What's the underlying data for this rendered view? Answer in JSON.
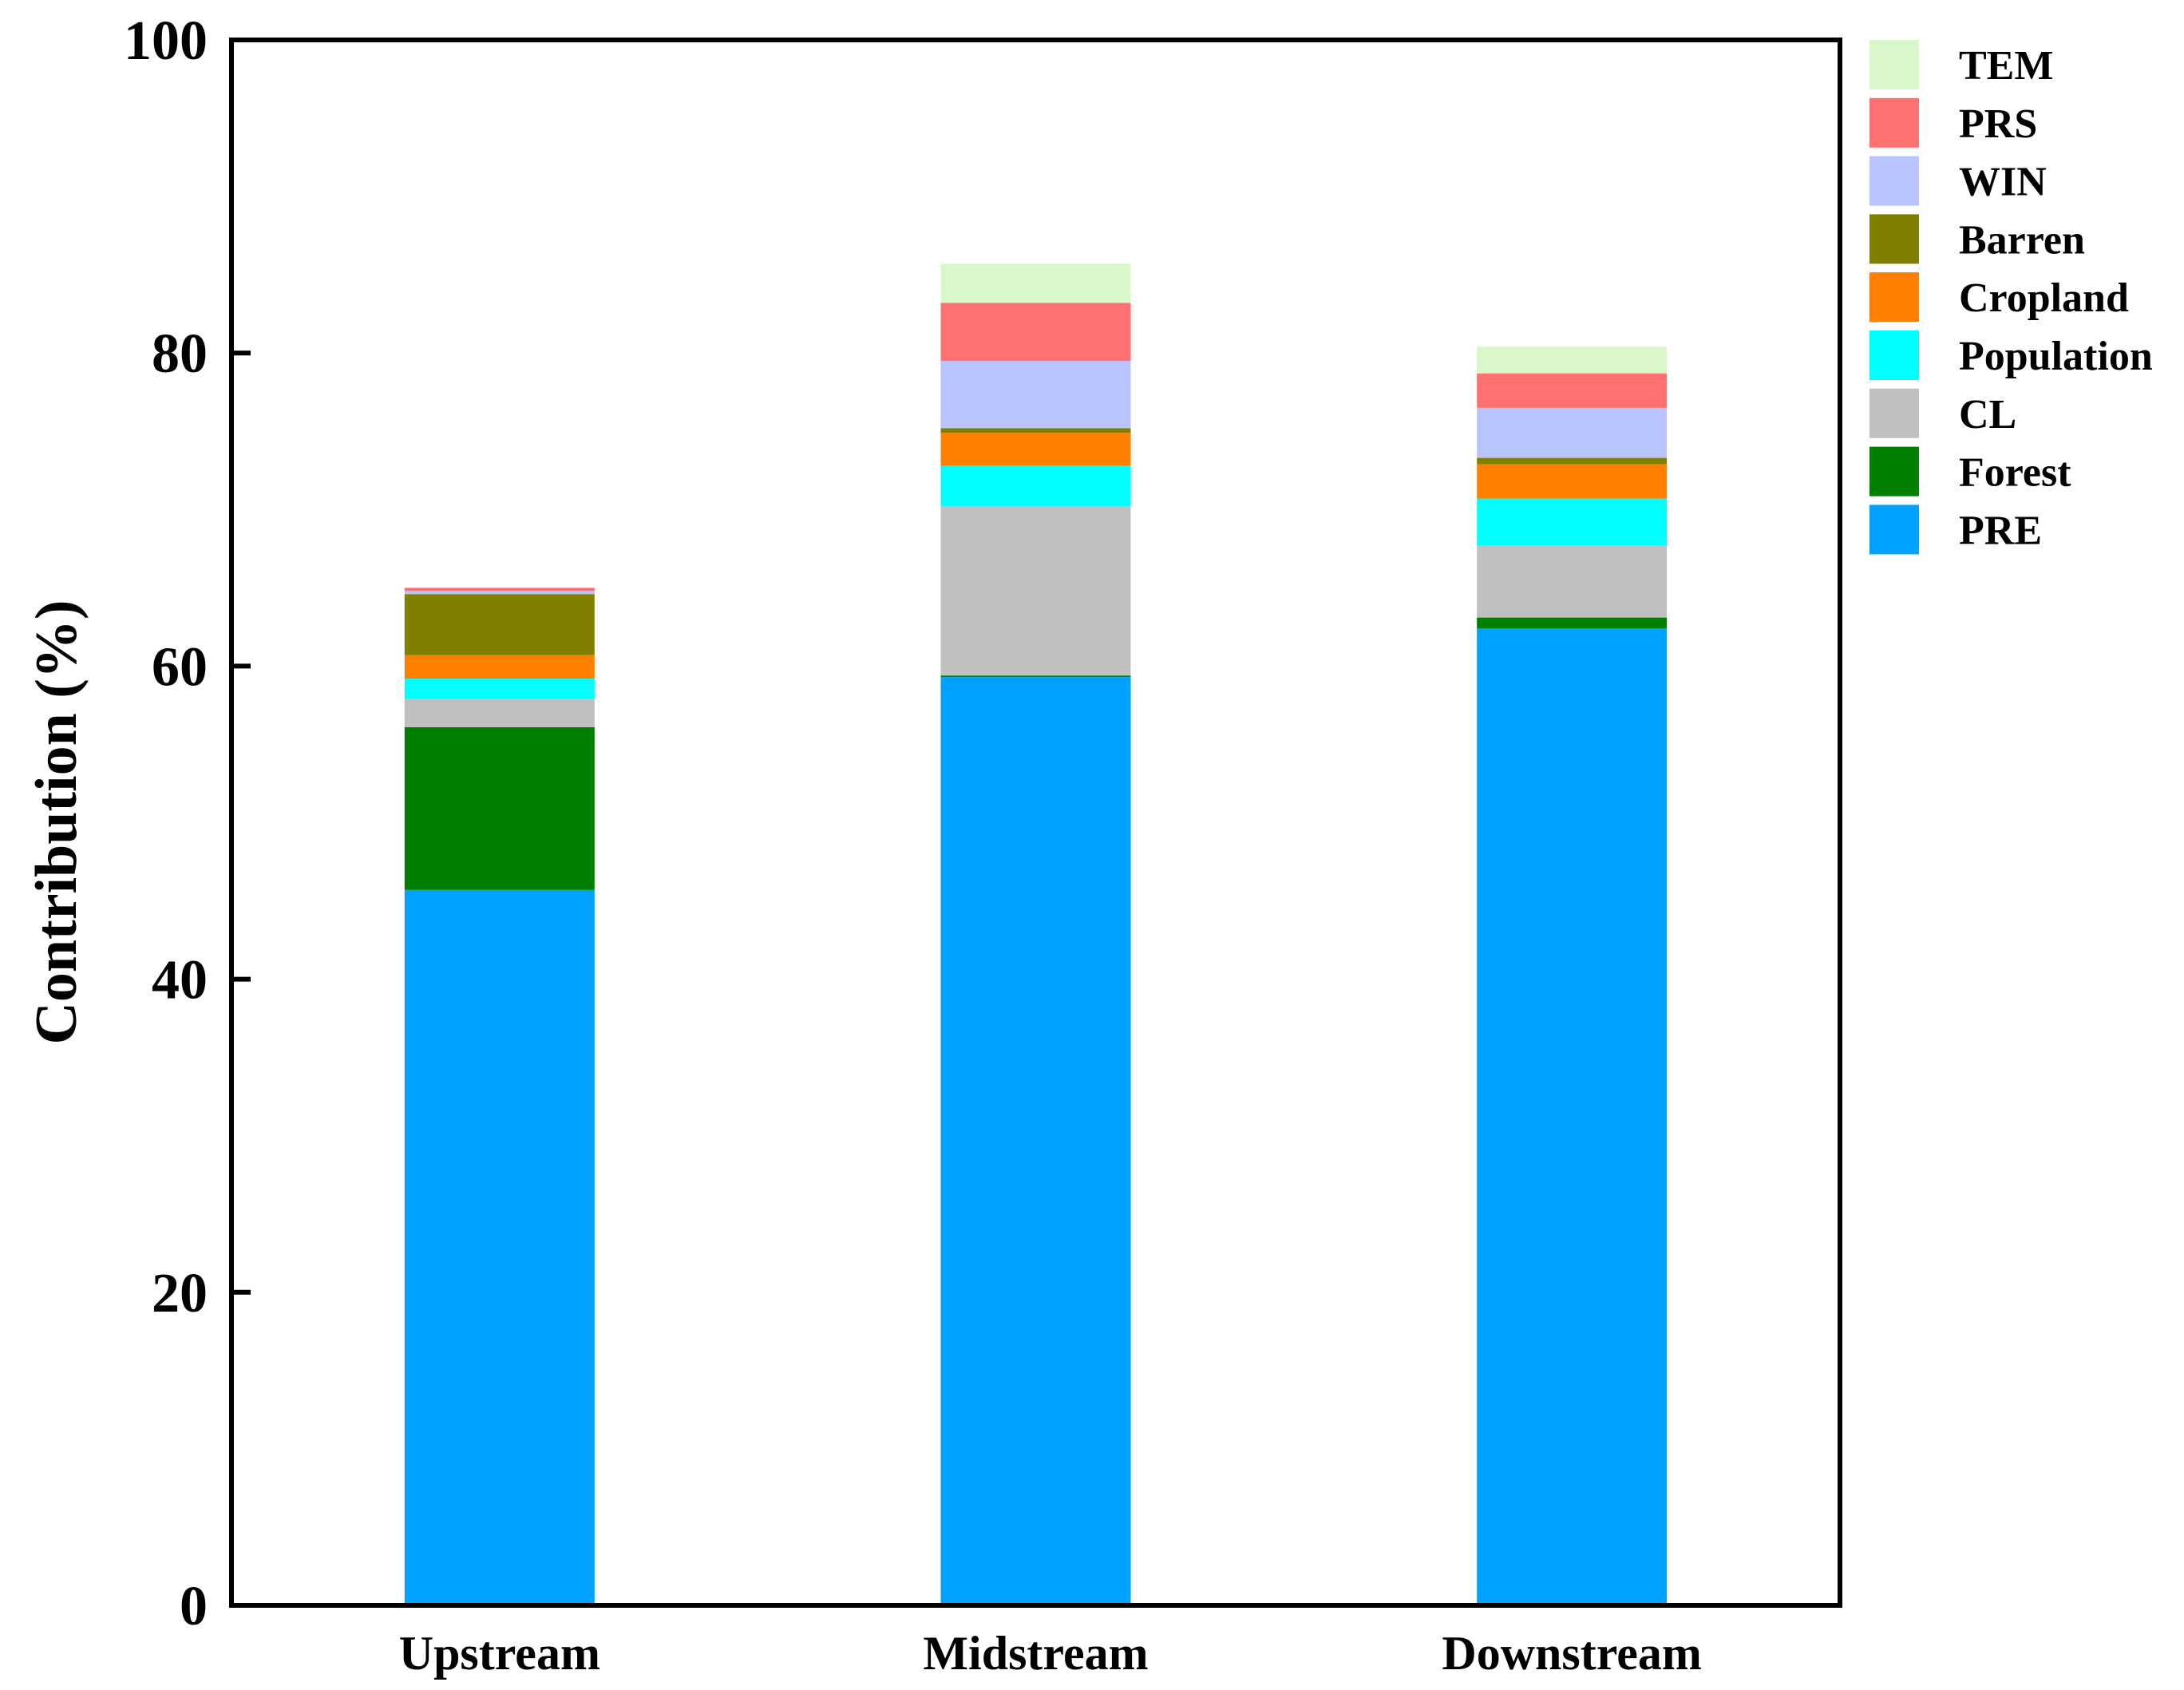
{
  "chart_data": {
    "type": "bar",
    "stacked": true,
    "title": "",
    "xlabel": "",
    "ylabel": "Contribution (%)",
    "ylim": [
      0,
      100
    ],
    "yticks": [
      0,
      20,
      40,
      60,
      80,
      100
    ],
    "grid": false,
    "legend_position": "top-right-outside",
    "categories": [
      "Upstream",
      "Midstream",
      "Downstream"
    ],
    "series": [
      {
        "name": "PRE",
        "color": "#00A2FF",
        "values": [
          45.7,
          59.3,
          62.4
        ]
      },
      {
        "name": "Forest",
        "color": "#008000",
        "values": [
          10.4,
          0.1,
          0.7
        ]
      },
      {
        "name": "CL",
        "color": "#C0C0C0",
        "values": [
          1.8,
          10.8,
          4.6
        ]
      },
      {
        "name": "Population",
        "color": "#00FFFF",
        "values": [
          1.3,
          2.6,
          3.0
        ]
      },
      {
        "name": "Cropland",
        "color": "#FF8000",
        "values": [
          1.5,
          2.1,
          2.2
        ]
      },
      {
        "name": "Barren",
        "color": "#808000",
        "values": [
          3.9,
          0.3,
          0.4
        ]
      },
      {
        "name": "WIN",
        "color": "#B8C3FF",
        "values": [
          0.2,
          4.3,
          3.2
        ]
      },
      {
        "name": "PRS",
        "color": "#FF7070",
        "values": [
          0.2,
          3.7,
          2.2
        ]
      },
      {
        "name": "TEM",
        "color": "#D9F7C9",
        "values": [
          0.0,
          2.5,
          1.7
        ]
      }
    ],
    "legend_order": [
      "TEM",
      "PRS",
      "WIN",
      "Barren",
      "Cropland",
      "Population",
      "CL",
      "Forest",
      "PRE"
    ]
  }
}
